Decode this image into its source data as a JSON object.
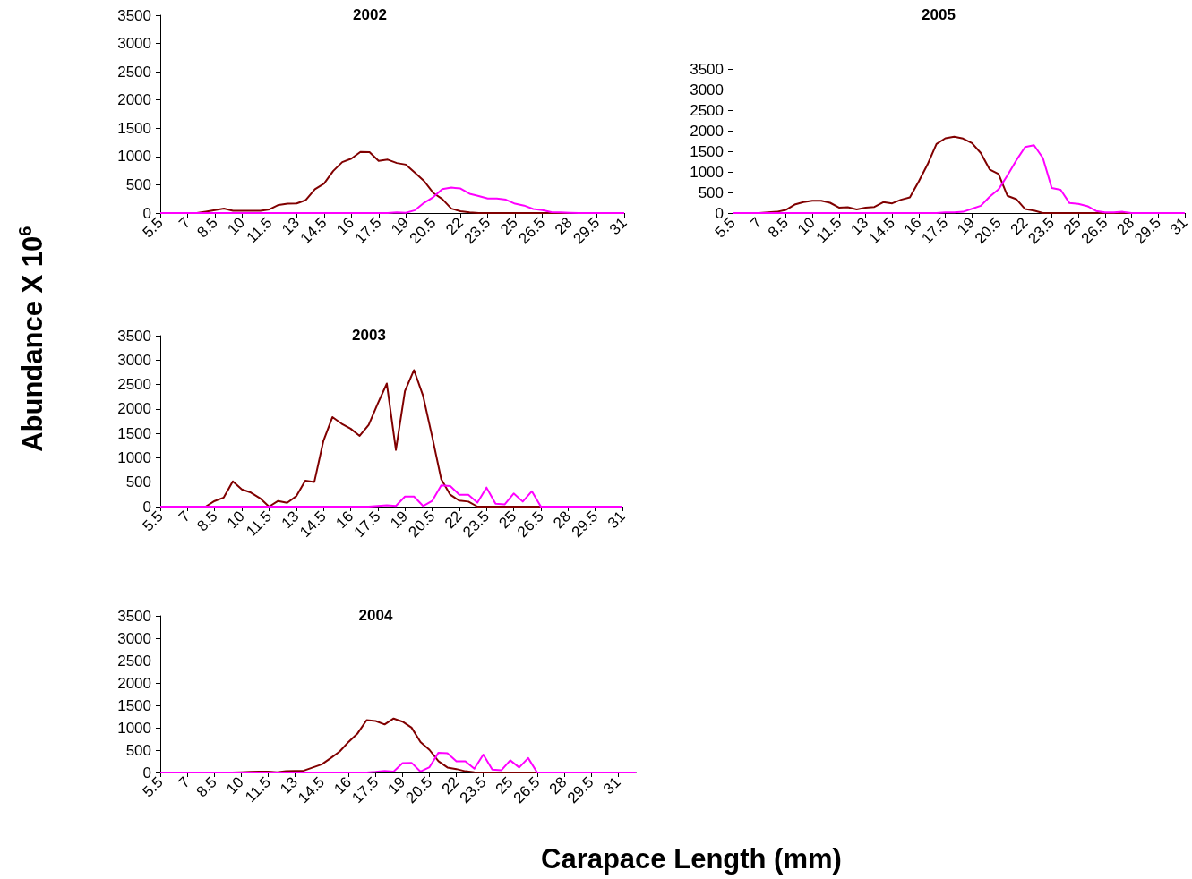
{
  "chart_data": [
    {
      "type": "line",
      "title": "2002",
      "categories": [
        "5.5",
        null,
        null,
        "7",
        null,
        null,
        "8.5",
        null,
        null,
        "10",
        null,
        null,
        "11.5",
        null,
        null,
        "13",
        null,
        null,
        "14.5",
        null,
        null,
        "16",
        null,
        null,
        "17.5",
        null,
        null,
        "19",
        null,
        null,
        "20.5",
        null,
        null,
        "22",
        null,
        null,
        "23.5",
        null,
        null,
        "25",
        null,
        null,
        "26.5",
        null,
        null,
        "28",
        null,
        null,
        "29.5",
        null,
        null,
        "31"
      ],
      "series": [
        {
          "color": "#800000",
          "values": [
            null,
            null,
            null,
            null,
            0,
            25,
            50,
            80,
            40,
            40,
            40,
            40,
            65,
            143,
            165,
            170,
            230,
            423,
            522,
            742,
            901,
            962,
            1082,
            1077,
            923,
            945,
            885,
            857,
            714,
            566,
            357,
            247,
            77,
            33,
            11,
            0,
            0,
            0,
            0,
            0,
            0,
            0,
            0,
            0,
            0,
            0,
            null,
            null,
            null,
            null,
            null,
            null
          ]
        },
        {
          "color": "#ff00ff",
          "values": [
            0,
            0,
            0,
            0,
            0,
            0,
            0,
            0,
            0,
            0,
            0,
            0,
            0,
            0,
            0,
            0,
            0,
            0,
            0,
            0,
            0,
            0,
            0,
            0,
            0,
            0,
            10,
            5,
            50,
            181,
            280,
            423,
            450,
            434,
            341,
            302,
            258,
            258,
            236,
            165,
            132,
            71,
            50,
            16,
            11,
            5,
            0,
            0,
            0,
            0,
            0,
            0
          ]
        }
      ],
      "ylim": [
        0,
        3500
      ],
      "yticks": [
        0,
        500,
        1000,
        1500,
        2000,
        2500,
        3000,
        3500
      ],
      "marker": "none",
      "line_style": "solid",
      "grid": false
    },
    {
      "type": "line",
      "title": "2005",
      "categories": [
        "5.5",
        null,
        null,
        "7",
        null,
        null,
        "8.5",
        null,
        null,
        "10",
        null,
        null,
        "11.5",
        null,
        null,
        "13",
        null,
        null,
        "14.5",
        null,
        null,
        "16",
        null,
        null,
        "17.5",
        null,
        null,
        "19",
        null,
        null,
        "20.5",
        null,
        null,
        "22",
        null,
        null,
        "23.5",
        null,
        null,
        "25",
        null,
        null,
        "26.5",
        null,
        null,
        "28",
        null,
        null,
        "29.5",
        null,
        null,
        "31"
      ],
      "series": [
        {
          "color": "#800000",
          "values": [
            null,
            null,
            null,
            0,
            15,
            30,
            74,
            206,
            265,
            301,
            301,
            250,
            132,
            140,
            88,
            132,
            147,
            265,
            235,
            324,
            382,
            765,
            1184,
            1676,
            1816,
            1853,
            1809,
            1699,
            1456,
            1059,
            949,
            419,
            338,
            96,
            59,
            0,
            0,
            0,
            0,
            0,
            0,
            0,
            0,
            0,
            0,
            0,
            0,
            null,
            null,
            null,
            null,
            null
          ]
        },
        {
          "color": "#ff00ff",
          "values": [
            0,
            0,
            0,
            0,
            0,
            0,
            0,
            0,
            0,
            0,
            0,
            0,
            0,
            0,
            0,
            0,
            0,
            0,
            0,
            0,
            0,
            0,
            0,
            0,
            15,
            15,
            30,
            103,
            176,
            397,
            574,
            912,
            1279,
            1603,
            1647,
            1338,
            610,
            566,
            243,
            221,
            169,
            51,
            15,
            15,
            30,
            0,
            0,
            0,
            0,
            0,
            0,
            0
          ]
        }
      ],
      "ylim": [
        0,
        3500
      ],
      "yticks": [
        0,
        500,
        1000,
        1500,
        2000,
        2500,
        3000,
        3500
      ],
      "marker": "none",
      "line_style": "solid",
      "grid": false
    },
    {
      "type": "line",
      "title": "2003",
      "ylabel": "Abundance X 10$^{6}$",
      "categories": [
        "5.5",
        null,
        null,
        "7",
        null,
        null,
        "8.5",
        null,
        null,
        "10",
        null,
        null,
        "11.5",
        null,
        null,
        "13",
        null,
        null,
        "14.5",
        null,
        null,
        "16",
        null,
        null,
        "17.5",
        null,
        null,
        "19",
        null,
        null,
        "20.5",
        null,
        null,
        "22",
        null,
        null,
        "23.5",
        null,
        null,
        "25",
        null,
        null,
        "26.5",
        null,
        null,
        "28",
        null,
        null,
        "29.5",
        null,
        null,
        "31"
      ],
      "series": [
        {
          "color": "#800000",
          "values": [
            null,
            null,
            null,
            null,
            null,
            0,
            115,
            186,
            519,
            353,
            288,
            173,
            0,
            115,
            77,
            212,
            532,
            506,
            1346,
            1833,
            1699,
            1596,
            1449,
            1673,
            2109,
            2519,
            1160,
            2365,
            2795,
            2269,
            1436,
            564,
            244,
            122,
            103,
            0,
            0,
            0,
            0,
            0,
            0,
            0,
            0,
            null,
            null,
            null,
            null,
            null,
            null,
            null,
            null,
            null
          ]
        },
        {
          "color": "#ff00ff",
          "values": [
            0,
            0,
            0,
            0,
            0,
            0,
            0,
            0,
            0,
            0,
            0,
            0,
            0,
            0,
            0,
            0,
            0,
            0,
            0,
            0,
            0,
            0,
            0,
            0,
            13,
            26,
            13,
            205,
            205,
            13,
            115,
            436,
            423,
            244,
            244,
            83,
            391,
            58,
            45,
            269,
            103,
            314,
            0,
            0,
            0,
            0,
            0,
            0,
            0,
            0,
            0,
            0
          ]
        }
      ],
      "ylim": [
        0,
        3500
      ],
      "yticks": [
        0,
        500,
        1000,
        1500,
        2000,
        2500,
        3000,
        3500
      ],
      "marker": "none",
      "line_style": "solid",
      "grid": false
    },
    {
      "type": "line",
      "title": "2004",
      "xlabel": "Carapace Length (mm)",
      "categories": [
        "5.5",
        null,
        null,
        "7",
        null,
        null,
        "8.5",
        null,
        null,
        "10",
        null,
        null,
        "11.5",
        null,
        null,
        "13",
        null,
        null,
        "14.5",
        null,
        null,
        "16",
        null,
        null,
        "17.5",
        null,
        null,
        "19",
        null,
        null,
        "20.5",
        null,
        null,
        "22",
        null,
        null,
        "23.5",
        null,
        null,
        "25",
        null,
        null,
        "26.5",
        null,
        null,
        "28",
        null,
        null,
        "29.5",
        null,
        null,
        "31",
        null,
        null
      ],
      "series": [
        {
          "color": "#800000",
          "values": [
            null,
            null,
            null,
            null,
            null,
            null,
            null,
            null,
            0,
            7,
            14,
            21,
            21,
            7,
            28,
            35,
            42,
            112,
            182,
            323,
            470,
            687,
            877,
            1171,
            1150,
            1073,
            1206,
            1136,
            1003,
            680,
            505,
            252,
            112,
            77,
            28,
            7,
            0,
            0,
            0,
            0,
            0,
            0,
            0,
            null,
            null,
            null,
            null,
            null,
            null,
            null,
            null,
            null,
            null,
            null
          ]
        },
        {
          "color": "#ff00ff",
          "values": [
            0,
            0,
            0,
            0,
            0,
            0,
            0,
            0,
            0,
            0,
            0,
            0,
            0,
            0,
            0,
            0,
            0,
            0,
            0,
            0,
            0,
            0,
            0,
            0,
            14,
            35,
            21,
            210,
            217,
            21,
            119,
            442,
            428,
            252,
            252,
            84,
            400,
            63,
            49,
            273,
            112,
            323,
            0,
            0,
            0,
            0,
            0,
            0,
            0,
            0,
            0,
            0,
            0,
            0
          ]
        }
      ],
      "ylim": [
        0,
        3500
      ],
      "yticks": [
        0,
        500,
        1000,
        1500,
        2000,
        2500,
        3000,
        3500
      ],
      "marker": "none",
      "line_style": "solid",
      "grid": false
    }
  ]
}
